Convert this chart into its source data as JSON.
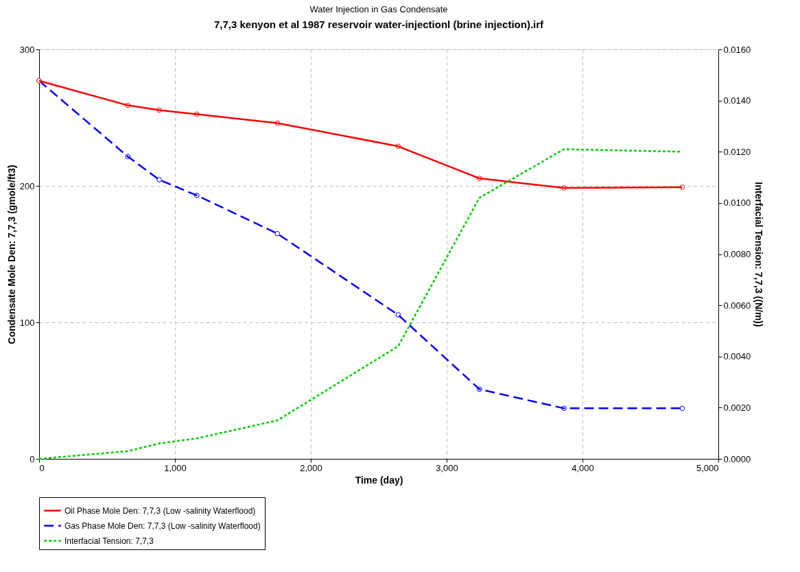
{
  "chart_data": {
    "type": "line",
    "title": "Water Injection in Gas Condensate",
    "subtitle": "7,7,3 kenyon et al 1987 reservoir water-injectionl (brine injection).irf",
    "xlabel": "Time (day)",
    "ylabel": "Condensate Mole Den: 7,7,3 (gmole/ft3)",
    "y2label": "Interfacial Tension: 7,7,3 ((N/m))",
    "series": [
      {
        "name": "Oil Phase Mole Den: 7,7,3 (Low -salinity Waterflood)",
        "color": "#ff0000",
        "line_style": "solid",
        "marker": "circle",
        "x": [
          0,
          653,
          884,
          1161,
          1754,
          2643,
          3241,
          3864,
          4734
        ],
        "values": [
          277,
          259,
          255.5,
          252.5,
          246,
          229,
          205.5,
          198.5,
          199
        ]
      },
      {
        "name": "Gas Phase Mole Den: 7,7,3 (Low -salinity Waterflood)",
        "color": "#0000ff",
        "line_style": "dashed",
        "marker": "circle",
        "x": [
          0,
          653,
          884,
          1161,
          1754,
          2643,
          3241,
          3864,
          4734
        ],
        "values": [
          277,
          221.5,
          204.5,
          193,
          165,
          105.5,
          51,
          37,
          37
        ]
      },
      {
        "name": "Interfacial Tension: 7,7,3",
        "color": "#00cc00",
        "line_style": "dotted",
        "marker": "none",
        "axis": "y2",
        "x": [
          0,
          653,
          884,
          1161,
          1754,
          2643,
          3241,
          3864,
          4734
        ],
        "values": [
          0,
          0.0003,
          0.0006,
          0.0008,
          0.0015,
          0.0044,
          0.0102,
          0.0121,
          0.012
        ]
      }
    ],
    "xlim": [
      0,
      5000
    ],
    "xticks": [
      0,
      {
        "value": 1000,
        "label": "1,000"
      },
      {
        "value": 2000,
        "label": "2,000"
      },
      {
        "value": 3000,
        "label": "3,000"
      },
      {
        "value": 4000,
        "label": "4,000"
      },
      {
        "value": 5000,
        "label": "5,000"
      }
    ],
    "ylim": [
      0,
      300
    ],
    "yticks": [
      0,
      100,
      200,
      300
    ],
    "y2lim": [
      0,
      0.016
    ],
    "y2ticks": [
      {
        "value": 0,
        "label": "0.0000"
      },
      {
        "value": 0.002,
        "label": "0.0020"
      },
      {
        "value": 0.004,
        "label": "0.0040"
      },
      {
        "value": 0.006,
        "label": "0.0060"
      },
      {
        "value": 0.008,
        "label": "0.0080"
      },
      {
        "value": 0.01,
        "label": "0.0100"
      },
      {
        "value": 0.012,
        "label": "0.0120"
      },
      {
        "value": 0.014,
        "label": "0.0140"
      },
      {
        "value": 0.016,
        "label": "0.0160"
      }
    ],
    "grid": true,
    "legend": "bottom"
  }
}
